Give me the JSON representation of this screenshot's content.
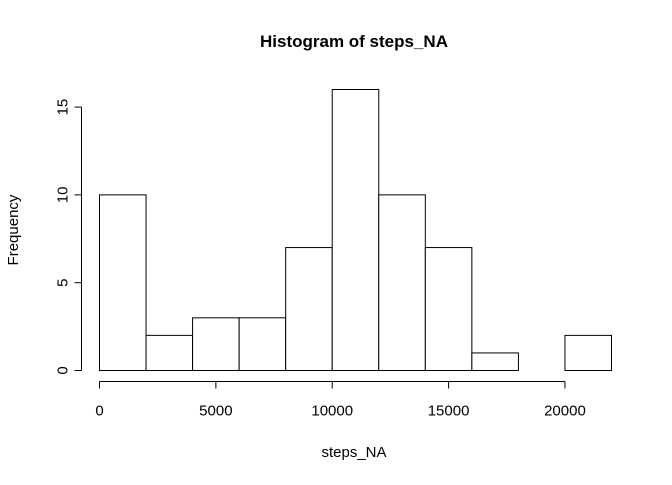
{
  "chart_data": {
    "type": "bar",
    "title": "Histogram of steps_NA",
    "xlabel": "steps_NA",
    "ylabel": "Frequency",
    "bin_edges": [
      0,
      2000,
      4000,
      6000,
      8000,
      10000,
      12000,
      14000,
      16000,
      18000,
      20000,
      22000
    ],
    "values": [
      10,
      2,
      3,
      3,
      7,
      16,
      10,
      7,
      1,
      0,
      2
    ],
    "x_ticks": [
      0,
      5000,
      10000,
      15000,
      20000
    ],
    "y_ticks": [
      0,
      5,
      10,
      15
    ],
    "xlim": [
      0,
      22000
    ],
    "ylim": [
      0,
      16
    ],
    "grid": false,
    "colors": {
      "bar_fill": "#ffffff",
      "bar_stroke": "#000000",
      "axis": "#000000"
    }
  }
}
